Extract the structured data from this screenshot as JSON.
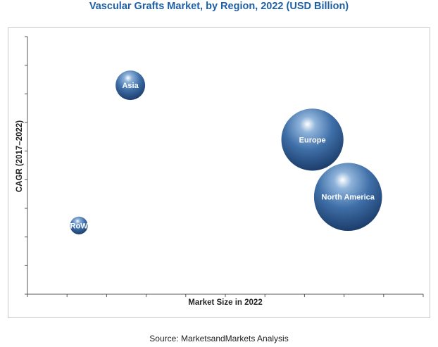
{
  "chart_data": {
    "type": "scatter",
    "title": "Vascular Grafts Market, by Region, 2022 (USD Billion)",
    "xlabel": "Market Size in 2022",
    "ylabel": "CAGR (2017–2022)",
    "source": "Source: MarketsandMarkets Analysis",
    "grid": false,
    "xlim": [
      0,
      10
    ],
    "ylim": [
      0,
      9
    ],
    "points": [
      {
        "label": "Asia",
        "x": 2.6,
        "y": 7.3,
        "size": 1.0
      },
      {
        "label": "Europe",
        "x": 7.2,
        "y": 5.4,
        "size": 2.1
      },
      {
        "label": "North America",
        "x": 8.1,
        "y": 3.4,
        "size": 2.3
      },
      {
        "label": "RoW",
        "x": 1.3,
        "y": 2.4,
        "size": 0.6
      }
    ]
  }
}
